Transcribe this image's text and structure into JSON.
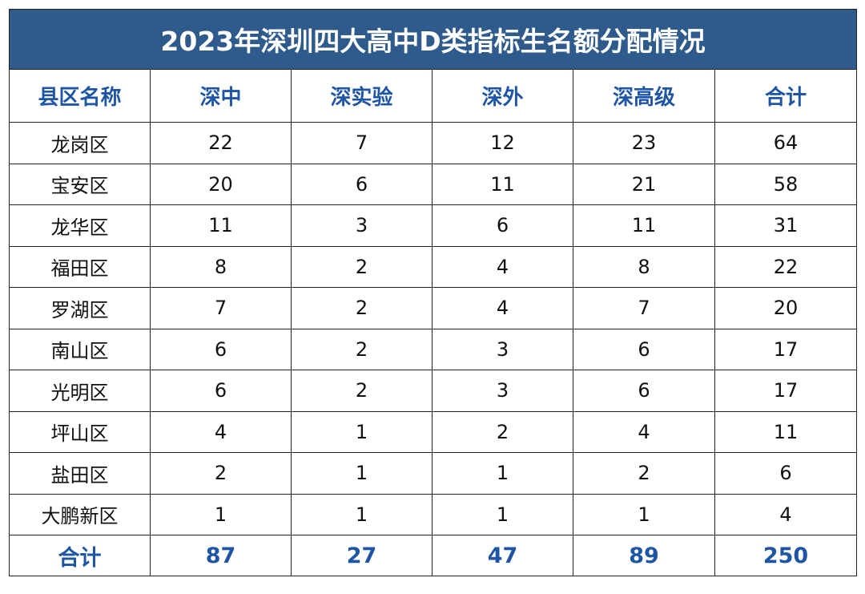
{
  "title": "2023年深圳四大高中D类指标生名额分配情况",
  "colors": {
    "title_bg": "#2e5a8c",
    "title_text": "#ffffff",
    "accent_text": "#1f55a5",
    "body_text": "#111111",
    "border": "#222222"
  },
  "headers": [
    "县区名称",
    "深中",
    "深实验",
    "深外",
    "深高级",
    "合计"
  ],
  "rows": [
    [
      "龙岗区",
      "22",
      "7",
      "12",
      "23",
      "64"
    ],
    [
      "宝安区",
      "20",
      "6",
      "11",
      "21",
      "58"
    ],
    [
      "龙华区",
      "11",
      "3",
      "6",
      "11",
      "31"
    ],
    [
      "福田区",
      "8",
      "2",
      "4",
      "8",
      "22"
    ],
    [
      "罗湖区",
      "7",
      "2",
      "4",
      "7",
      "20"
    ],
    [
      "南山区",
      "6",
      "2",
      "3",
      "6",
      "17"
    ],
    [
      "光明区",
      "6",
      "2",
      "3",
      "6",
      "17"
    ],
    [
      "坪山区",
      "4",
      "1",
      "2",
      "4",
      "11"
    ],
    [
      "盐田区",
      "2",
      "1",
      "1",
      "2",
      "6"
    ],
    [
      "大鹏新区",
      "1",
      "1",
      "1",
      "1",
      "4"
    ]
  ],
  "totals": [
    "合计",
    "87",
    "27",
    "47",
    "89",
    "250"
  ]
}
